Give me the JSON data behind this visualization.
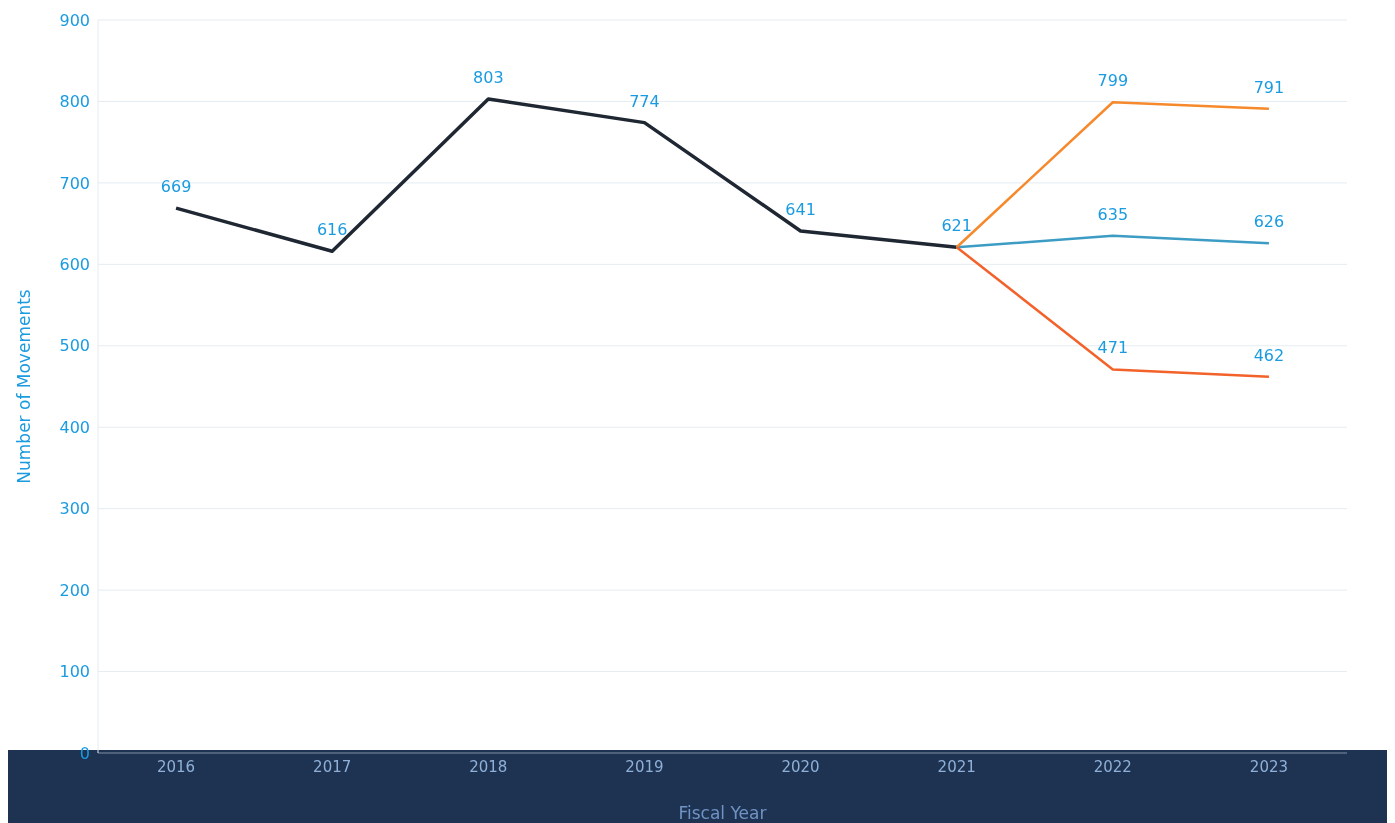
{
  "chart_data": {
    "type": "line",
    "xlabel": "Fiscal Year",
    "ylabel": "Number of Movements",
    "categories": [
      "2016",
      "2017",
      "2018",
      "2019",
      "2020",
      "2021",
      "2022",
      "2023"
    ],
    "series": [
      {
        "color": "#1f2733",
        "values": [
          669,
          616,
          803,
          774,
          641,
          621,
          null,
          null
        ],
        "value_labels": [
          "669",
          "616",
          "803",
          "774",
          "641",
          "621",
          null,
          null
        ]
      },
      {
        "color": "#3d9cc4",
        "values": [
          null,
          null,
          null,
          null,
          null,
          621,
          635,
          626
        ],
        "value_labels": [
          null,
          null,
          null,
          null,
          null,
          null,
          "635",
          "626"
        ]
      },
      {
        "color": "#f5892c",
        "values": [
          null,
          null,
          null,
          null,
          null,
          621,
          799,
          791
        ],
        "value_labels": [
          null,
          null,
          null,
          null,
          null,
          null,
          "799",
          "791"
        ]
      },
      {
        "color": "#f2622a",
        "values": [
          null,
          null,
          null,
          null,
          null,
          621,
          471,
          462
        ],
        "value_labels": [
          null,
          null,
          null,
          null,
          null,
          null,
          "471",
          "462"
        ]
      }
    ],
    "ylim": [
      0,
      900
    ],
    "yticks": [
      0,
      100,
      200,
      300,
      400,
      500,
      600,
      700,
      800,
      900
    ],
    "grid": "y",
    "marker": "none",
    "line_style": "solid"
  }
}
